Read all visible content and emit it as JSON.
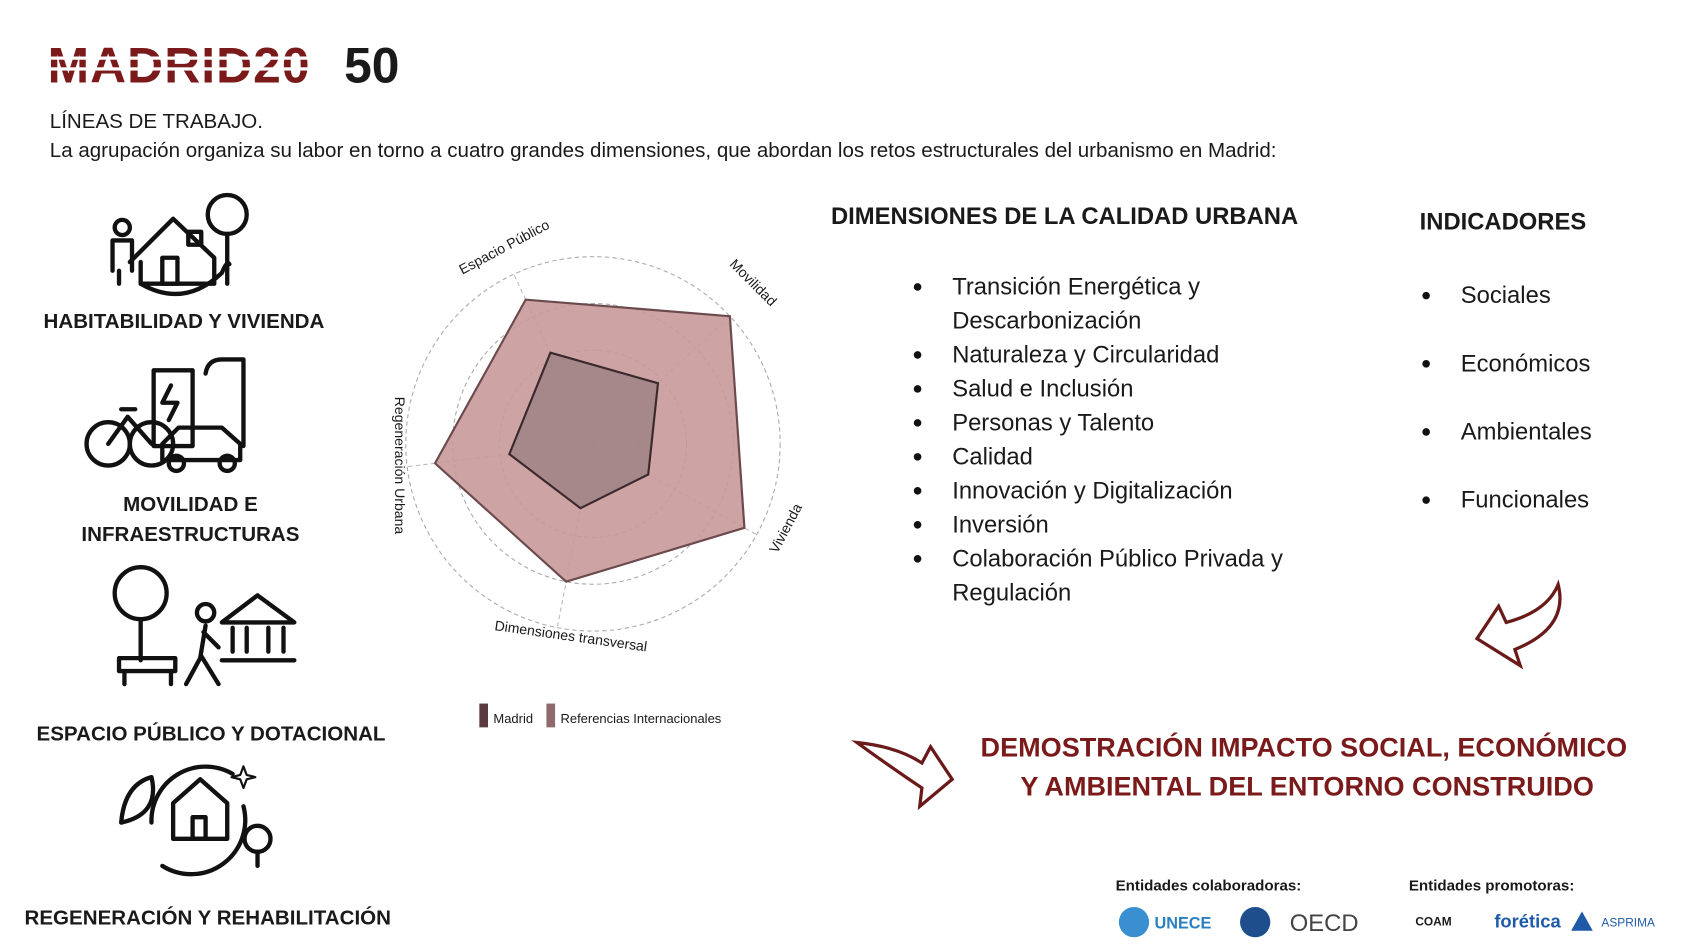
{
  "header": {
    "logo_dark": "MADRID20",
    "logo_light": "50",
    "heading": "LÍNEAS DE TRABAJO.",
    "intro": "La agrupación organiza su labor en torno a cuatro grandes dimensiones, que abordan los retos estructurales del urbanismo en Madrid:"
  },
  "lines_of_work": [
    {
      "lines": [
        "HABITABILIDAD Y VIVIENDA"
      ]
    },
    {
      "lines": [
        "MOVILIDAD E",
        "INFRAESTRUCTURAS"
      ]
    },
    {
      "lines": [
        "ESPACIO PÚBLICO Y DOTACIONAL"
      ]
    },
    {
      "lines": [
        "REGENERACIÓN Y REHABILITACIÓN"
      ]
    }
  ],
  "radar": {
    "type": "radar",
    "axes": [
      "Espacio Público",
      "Movilidad",
      "Vivienda",
      "Dimensiones transversal",
      "Regeneración Urbana"
    ],
    "rlim": [
      0,
      4
    ],
    "rticks": [
      1,
      2,
      3,
      4
    ],
    "grid": true,
    "series": [
      {
        "name": "Referencias Internacionales",
        "color": "#c9999a",
        "stroke": "#6b4a4d",
        "legend_color": "#8f6a6d",
        "values": [
          3.4,
          4.0,
          3.7,
          3.0,
          3.4
        ]
      },
      {
        "name": "Madrid",
        "color": "#9a7f82",
        "stroke": "#3b2a2d",
        "legend_color": "#5a3a40",
        "values": [
          2.15,
          1.9,
          1.35,
          1.4,
          1.8
        ]
      }
    ]
  },
  "dimensions": {
    "title": "DIMENSIONES DE LA CALIDAD URBANA",
    "items": [
      {
        "lines": [
          "Transición Energética y",
          "Descarbonización"
        ]
      },
      {
        "lines": [
          "Naturaleza y Circularidad"
        ]
      },
      {
        "lines": [
          "Salud e Inclusión"
        ]
      },
      {
        "lines": [
          "Personas y Talento"
        ]
      },
      {
        "lines": [
          "Calidad"
        ]
      },
      {
        "lines": [
          "Innovación y Digitalización"
        ]
      },
      {
        "lines": [
          "Inversión"
        ]
      },
      {
        "lines": [
          "Colaboración Público Privada y",
          "Regulación"
        ]
      }
    ]
  },
  "indicators": {
    "title": "INDICADORES",
    "items": [
      "Sociales",
      "Económicos",
      "Ambientales",
      "Funcionales"
    ]
  },
  "conclusion": {
    "lines": [
      "DEMOSTRACIÓN IMPACTO SOCIAL, ECONÓMICO",
      "Y  AMBIENTAL DEL ENTORNO CONSTRUIDO"
    ]
  },
  "partners": {
    "collaborators_title": "Entidades colaboradoras:",
    "collaborators": [
      "UNECE",
      "OECD"
    ],
    "promoters_title": "Entidades promotoras:",
    "promoters": [
      "COAM",
      "forética",
      "ASPRIMA"
    ]
  }
}
